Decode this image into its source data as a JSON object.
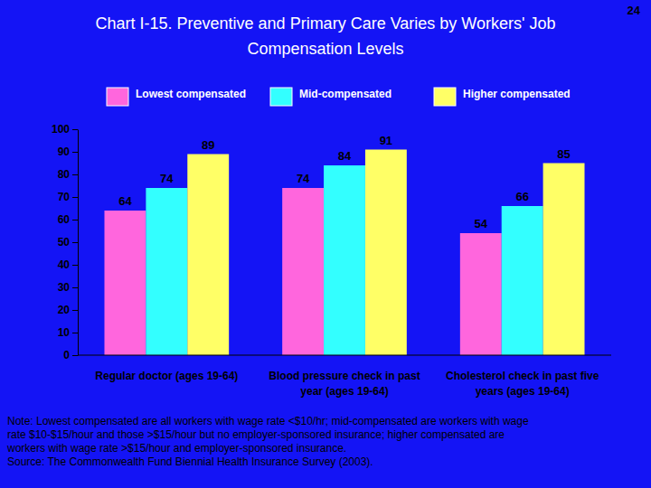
{
  "chart_data": {
    "type": "bar",
    "title": "Chart I-15. Preventive and Primary Care Varies by Workers' Job Compensation Levels",
    "categories": [
      "Regular doctor (ages 19-64)",
      "Blood pressure check in past year (ages 19-64)",
      "Cholesterol check in past five years (ages 19-64)"
    ],
    "series": [
      {
        "name": "Lowest compensated",
        "color": "#ff66dd",
        "values": [
          64,
          74,
          54
        ]
      },
      {
        "name": "Mid-compensated",
        "color": "#33ffff",
        "values": [
          74,
          84,
          66
        ]
      },
      {
        "name": "Higher compensated",
        "color": "#ffff66",
        "values": [
          89,
          91,
          85
        ]
      }
    ],
    "ylim": [
      0,
      100
    ],
    "yticks": [
      0,
      10,
      20,
      30,
      40,
      50,
      60,
      70,
      80,
      90,
      100
    ],
    "grid": false,
    "data_labels": true,
    "legend": "top",
    "annotations": [
      "24",
      "Note: Lowest compensated are all workers with wage rate <$10/hr; mid-compensated are workers with wage rate $10-$15/hour and those >$15/hour but no employer-sponsored insurance; higher compensated are workers with wage rate >$15/hour and employer-sponsored insurance.",
      "Source: The Commonwealth Fund Biennial Health Insurance Survey (2003)."
    ]
  }
}
